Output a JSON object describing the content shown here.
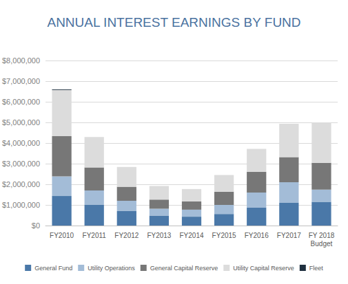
{
  "chart_data": {
    "type": "bar",
    "title": "ANNUAL INTEREST EARNINGS BY FUND",
    "categories": [
      "FY2010",
      "FY2011",
      "FY2012",
      "FY2013",
      "FY2014",
      "FY2015",
      "FY2016",
      "FY2017",
      "FY 2018\nBudget"
    ],
    "series": [
      {
        "name": "General Fund",
        "color": "#4a78a8",
        "values": [
          1430000,
          1000000,
          700000,
          480000,
          430000,
          560000,
          870000,
          1100000,
          1150000
        ]
      },
      {
        "name": "Utility Operations",
        "color": "#a3bcd7",
        "values": [
          950000,
          700000,
          500000,
          340000,
          340000,
          440000,
          730000,
          1000000,
          590000
        ]
      },
      {
        "name": "General Capital Reserve",
        "color": "#777777",
        "values": [
          1950000,
          1120000,
          680000,
          440000,
          400000,
          640000,
          1000000,
          1220000,
          1300000
        ]
      },
      {
        "name": "Utility Capital Reserve",
        "color": "#dcdcdc",
        "values": [
          2240000,
          1470000,
          960000,
          660000,
          600000,
          810000,
          1120000,
          1610000,
          1960000
        ]
      },
      {
        "name": "Fleet",
        "color": "#1f2f3f",
        "values": [
          30000,
          0,
          0,
          0,
          0,
          0,
          0,
          0,
          0
        ]
      }
    ],
    "ylim": [
      0,
      8000000
    ],
    "yticks": [
      {
        "value": 0,
        "label": "$0"
      },
      {
        "value": 1000000,
        "label": "$1,000,000"
      },
      {
        "value": 2000000,
        "label": "$2,000,000"
      },
      {
        "value": 3000000,
        "label": "$3,000,000"
      },
      {
        "value": 4000000,
        "label": "$4,000,000"
      },
      {
        "value": 5000000,
        "label": "$5,000,000"
      },
      {
        "value": 6000000,
        "label": "$6,000,000"
      },
      {
        "value": 7000000,
        "label": "$7,000,000"
      },
      {
        "value": 8000000,
        "label": "$8,000,000"
      }
    ],
    "stacked": true,
    "grid": true,
    "legend": "bottom"
  }
}
